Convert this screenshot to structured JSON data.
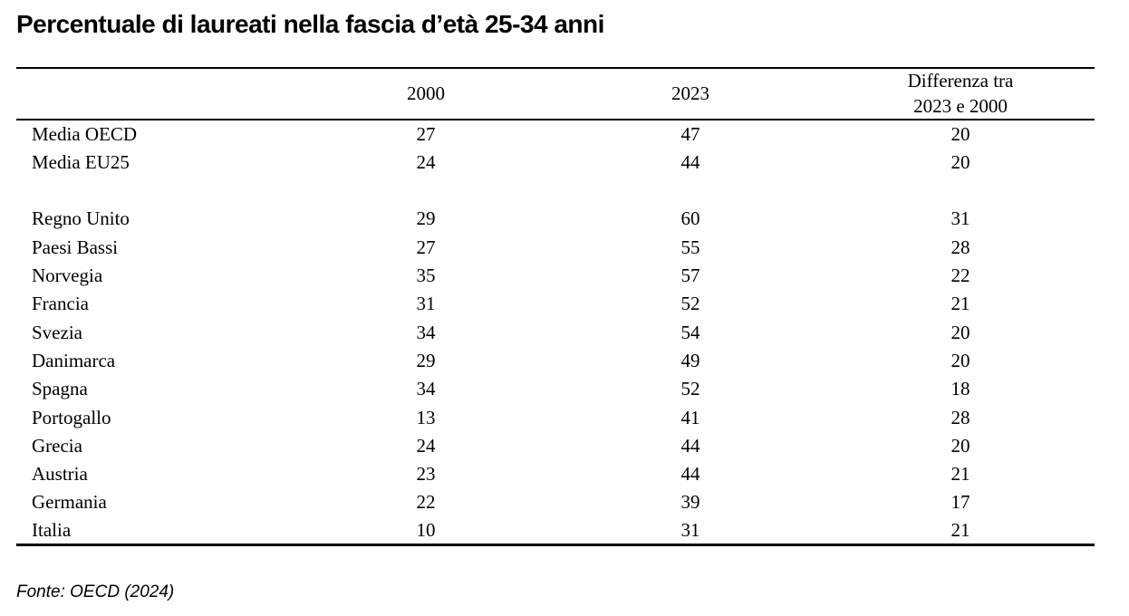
{
  "title": "Percentuale di laureati nella fascia d’età 25-34 anni",
  "table": {
    "header": {
      "country": "",
      "col_2000": "2000",
      "col_2023": "2023",
      "diff_line1": "Differenza tra",
      "diff_line2": "2023 e 2000"
    },
    "rows": [
      {
        "label": "Media OECD",
        "y2000": "27",
        "y2023": "47",
        "diff": "20"
      },
      {
        "label": "Media EU25",
        "y2000": "24",
        "y2023": "44",
        "diff": "20"
      },
      {
        "label": "Regno Unito",
        "y2000": "29",
        "y2023": "60",
        "diff": "31"
      },
      {
        "label": "Paesi Bassi",
        "y2000": "27",
        "y2023": "55",
        "diff": "28"
      },
      {
        "label": "Norvegia",
        "y2000": "35",
        "y2023": "57",
        "diff": "22"
      },
      {
        "label": "Francia",
        "y2000": "31",
        "y2023": "52",
        "diff": "21"
      },
      {
        "label": "Svezia",
        "y2000": "34",
        "y2023": "54",
        "diff": "20"
      },
      {
        "label": "Danimarca",
        "y2000": "29",
        "y2023": "49",
        "diff": "20"
      },
      {
        "label": "Spagna",
        "y2000": "34",
        "y2023": "52",
        "diff": "18"
      },
      {
        "label": "Portogallo",
        "y2000": "13",
        "y2023": "41",
        "diff": "28"
      },
      {
        "label": "Grecia",
        "y2000": "24",
        "y2023": "44",
        "diff": "20"
      },
      {
        "label": "Austria",
        "y2000": "23",
        "y2023": "44",
        "diff": "21"
      },
      {
        "label": "Germania",
        "y2000": "22",
        "y2023": "39",
        "diff": "17"
      },
      {
        "label": "Italia",
        "y2000": "10",
        "y2023": "31",
        "diff": "21"
      }
    ]
  },
  "source": "Fonte: OECD (2024)",
  "colors": {
    "text": "#000000",
    "background": "#ffffff",
    "rule": "#000000"
  },
  "chart_data": {
    "type": "table",
    "title": "Percentuale di laureati nella fascia d’età 25-34 anni",
    "columns": [
      "",
      "2000",
      "2023",
      "Differenza tra 2023 e 2000"
    ],
    "rows": [
      [
        "Media OECD",
        27,
        47,
        20
      ],
      [
        "Media EU25",
        24,
        44,
        20
      ],
      [
        "Regno Unito",
        29,
        60,
        31
      ],
      [
        "Paesi Bassi",
        27,
        55,
        28
      ],
      [
        "Norvegia",
        35,
        57,
        22
      ],
      [
        "Francia",
        31,
        52,
        21
      ],
      [
        "Svezia",
        34,
        54,
        20
      ],
      [
        "Danimarca",
        29,
        49,
        20
      ],
      [
        "Spagna",
        34,
        52,
        18
      ],
      [
        "Portogallo",
        13,
        41,
        28
      ],
      [
        "Grecia",
        24,
        44,
        20
      ],
      [
        "Austria",
        23,
        44,
        21
      ],
      [
        "Germania",
        22,
        39,
        17
      ],
      [
        "Italia",
        10,
        31,
        21
      ]
    ],
    "source": "Fonte: OECD (2024)"
  }
}
